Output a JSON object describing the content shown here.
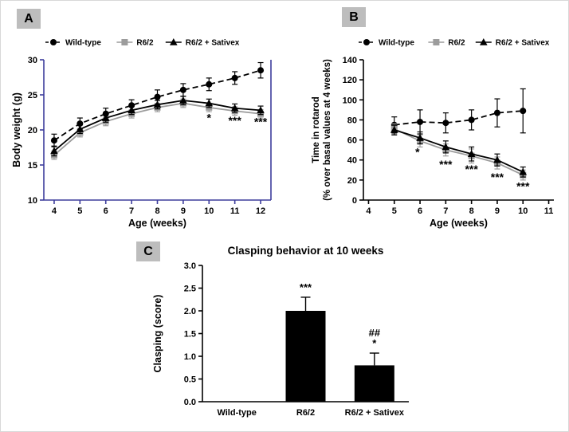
{
  "figure": {
    "panels": [
      {
        "label": "A"
      },
      {
        "label": "B"
      },
      {
        "label": "C"
      }
    ]
  },
  "colors": {
    "wild_type": "#000000",
    "r62": "#9c9c9c",
    "sativex": "#000000",
    "panel_a_axis": "#3d3d9c",
    "bar": "#000000"
  },
  "chart_data": [
    {
      "id": "A",
      "type": "line",
      "xlabel": "Age (weeks)",
      "ylabel": "Body weight (g)",
      "xlim": [
        3.6,
        12.4
      ],
      "ylim": [
        10,
        30
      ],
      "xticks": [
        4,
        5,
        6,
        7,
        8,
        9,
        10,
        11,
        12
      ],
      "yticks": [
        10,
        15,
        20,
        25,
        30
      ],
      "ytick_decimals": 0,
      "axis_color": "#3d3d9c",
      "x": [
        4,
        5,
        6,
        7,
        8,
        9,
        10,
        11,
        12
      ],
      "series": [
        {
          "name": "Wild-type",
          "marker": "circle",
          "color": "#000000",
          "dash": "7,4",
          "values": [
            18.5,
            20.9,
            22.3,
            23.5,
            24.7,
            25.7,
            26.5,
            27.4,
            28.5
          ],
          "errors": [
            0.9,
            0.8,
            0.8,
            0.8,
            1.0,
            0.9,
            0.9,
            0.9,
            1.1
          ]
        },
        {
          "name": "R6/2",
          "marker": "square",
          "color": "#9c9c9c",
          "dash": null,
          "values": [
            16.4,
            19.6,
            21.2,
            22.3,
            23.2,
            23.8,
            23.2,
            22.7,
            22.3
          ],
          "errors": [
            0.6,
            0.6,
            0.6,
            0.6,
            0.6,
            0.6,
            0.6,
            0.6,
            0.6
          ]
        },
        {
          "name": "R6/2 + Sativex",
          "marker": "triangle",
          "color": "#000000",
          "dash": null,
          "values": [
            17.0,
            20.1,
            21.7,
            22.8,
            23.6,
            24.2,
            23.8,
            23.1,
            22.8
          ],
          "errors": [
            0.7,
            0.6,
            0.6,
            0.6,
            0.6,
            0.6,
            0.6,
            0.6,
            0.6
          ]
        }
      ],
      "annotations": [
        {
          "x": 10,
          "y": 21.2,
          "text": "*"
        },
        {
          "x": 11,
          "y": 20.8,
          "text": "***"
        },
        {
          "x": 12,
          "y": 20.6,
          "text": "***"
        }
      ]
    },
    {
      "id": "B",
      "type": "line",
      "xlabel": "Age (weeks)",
      "ylabel": "Time in rotarod",
      "ylabel2": "(% over basal values at 4 weeks)",
      "xlim": [
        3.8,
        11.2
      ],
      "ylim": [
        0,
        140
      ],
      "xticks": [
        4,
        5,
        6,
        7,
        8,
        9,
        10,
        11
      ],
      "yticks": [
        0,
        20,
        40,
        60,
        80,
        100,
        120,
        140
      ],
      "ytick_decimals": 0,
      "axis_color": "#000000",
      "x": [
        5,
        6,
        7,
        8,
        9,
        10
      ],
      "series": [
        {
          "name": "Wild-type",
          "marker": "circle",
          "color": "#000000",
          "dash": "7,4",
          "values": [
            75,
            78,
            77,
            80,
            87,
            89
          ],
          "errors": [
            8,
            12,
            10,
            10,
            14,
            22
          ]
        },
        {
          "name": "R6/2",
          "marker": "square",
          "color": "#9c9c9c",
          "dash": null,
          "values": [
            71,
            59,
            50,
            44,
            37,
            25
          ],
          "errors": [
            5,
            6,
            6,
            7,
            6,
            5
          ]
        },
        {
          "name": "R6/2 + Sativex",
          "marker": "triangle",
          "color": "#000000",
          "dash": null,
          "values": [
            70,
            62,
            53,
            46,
            40,
            28
          ],
          "errors": [
            5,
            6,
            6,
            7,
            6,
            5
          ]
        }
      ],
      "annotations": [
        {
          "x": 5.9,
          "y": 44,
          "text": "*"
        },
        {
          "x": 7,
          "y": 32,
          "text": "***"
        },
        {
          "x": 8,
          "y": 27,
          "text": "***"
        },
        {
          "x": 9,
          "y": 19,
          "text": "***"
        },
        {
          "x": 10,
          "y": 10,
          "text": "***"
        }
      ]
    },
    {
      "id": "C",
      "type": "bar",
      "title": "Clasping behavior at 10 weeks",
      "ylabel": "Clasping (score)",
      "categories": [
        "Wild-type",
        "R6/2",
        "R6/2 + Sativex"
      ],
      "values": [
        0,
        2.0,
        0.8
      ],
      "errors": [
        0,
        0.3,
        0.27
      ],
      "ylim": [
        0,
        3
      ],
      "yticks": [
        0,
        0.5,
        1,
        1.5,
        2,
        2.5,
        3
      ],
      "bar_color": "#000000",
      "annotations": [
        {
          "index": 1,
          "lines": [
            "***"
          ]
        },
        {
          "index": 2,
          "lines": [
            "##",
            "*"
          ]
        }
      ]
    }
  ]
}
